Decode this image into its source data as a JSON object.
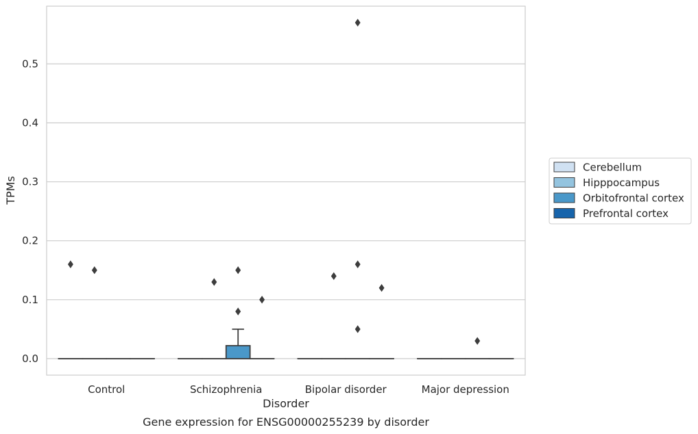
{
  "chart_data": {
    "type": "box",
    "title": "",
    "caption": "Gene expression for ENSG00000255239 by disorder",
    "xlabel": "Disorder",
    "ylabel": "TPMs",
    "ylim": [
      -0.028,
      0.598
    ],
    "yticks": [
      0.0,
      0.1,
      0.2,
      0.3,
      0.4,
      0.5
    ],
    "ytick_labels": [
      "0.0",
      "0.1",
      "0.2",
      "0.3",
      "0.4",
      "0.5"
    ],
    "grid": "horizontal",
    "legend_position": "right",
    "categories": [
      "Control",
      "Schizophrenia",
      "Bipolar disorder",
      "Major depression"
    ],
    "series": [
      {
        "name": "Cerebellum",
        "color": "#d0e1f2",
        "boxes": [
          {
            "category": "Control",
            "q1": 0,
            "median": 0,
            "q3": 0,
            "whislo": 0,
            "whishi": 0,
            "fliers": [
              0.16
            ]
          },
          {
            "category": "Schizophrenia",
            "q1": 0,
            "median": 0,
            "q3": 0,
            "whislo": 0,
            "whishi": 0,
            "fliers": []
          },
          {
            "category": "Bipolar disorder",
            "q1": 0,
            "median": 0,
            "q3": 0,
            "whislo": 0,
            "whishi": 0,
            "fliers": []
          },
          {
            "category": "Major depression",
            "q1": 0,
            "median": 0,
            "q3": 0,
            "whislo": 0,
            "whishi": 0,
            "fliers": []
          }
        ]
      },
      {
        "name": "Hipppocampus",
        "color": "#94c4df",
        "boxes": [
          {
            "category": "Control",
            "q1": 0,
            "median": 0,
            "q3": 0,
            "whislo": 0,
            "whishi": 0,
            "fliers": [
              0.15
            ]
          },
          {
            "category": "Schizophrenia",
            "q1": 0,
            "median": 0,
            "q3": 0,
            "whislo": 0,
            "whishi": 0,
            "fliers": [
              0.13
            ]
          },
          {
            "category": "Bipolar disorder",
            "q1": 0,
            "median": 0,
            "q3": 0,
            "whislo": 0,
            "whishi": 0,
            "fliers": [
              0.14
            ]
          },
          {
            "category": "Major depression",
            "q1": 0,
            "median": 0,
            "q3": 0,
            "whislo": 0,
            "whishi": 0,
            "fliers": []
          }
        ]
      },
      {
        "name": "Orbitofrontal cortex",
        "color": "#4a98c9",
        "boxes": [
          {
            "category": "Control",
            "q1": 0,
            "median": 0,
            "q3": 0,
            "whislo": 0,
            "whishi": 0,
            "fliers": []
          },
          {
            "category": "Schizophrenia",
            "q1": 0,
            "median": 0,
            "q3": 0.022,
            "whislo": 0,
            "whishi": 0.05,
            "fliers": [
              0.08,
              0.15
            ]
          },
          {
            "category": "Bipolar disorder",
            "q1": 0,
            "median": 0,
            "q3": 0,
            "whislo": 0,
            "whishi": 0,
            "fliers": [
              0.16,
              0.05,
              0.57
            ]
          },
          {
            "category": "Major depression",
            "q1": 0,
            "median": 0,
            "q3": 0,
            "whislo": 0,
            "whishi": 0,
            "fliers": [
              0.03
            ]
          }
        ]
      },
      {
        "name": "Prefrontal cortex",
        "color": "#1764ab",
        "boxes": [
          {
            "category": "Control",
            "q1": 0,
            "median": 0,
            "q3": 0,
            "whislo": 0,
            "whishi": 0,
            "fliers": []
          },
          {
            "category": "Schizophrenia",
            "q1": 0,
            "median": 0,
            "q3": 0,
            "whislo": 0,
            "whishi": 0,
            "fliers": [
              0.1
            ]
          },
          {
            "category": "Bipolar disorder",
            "q1": 0,
            "median": 0,
            "q3": 0,
            "whislo": 0,
            "whishi": 0,
            "fliers": [
              0.12
            ]
          },
          {
            "category": "Major depression",
            "q1": 0,
            "median": 0,
            "q3": 0,
            "whislo": 0,
            "whishi": 0,
            "fliers": []
          }
        ]
      }
    ]
  }
}
